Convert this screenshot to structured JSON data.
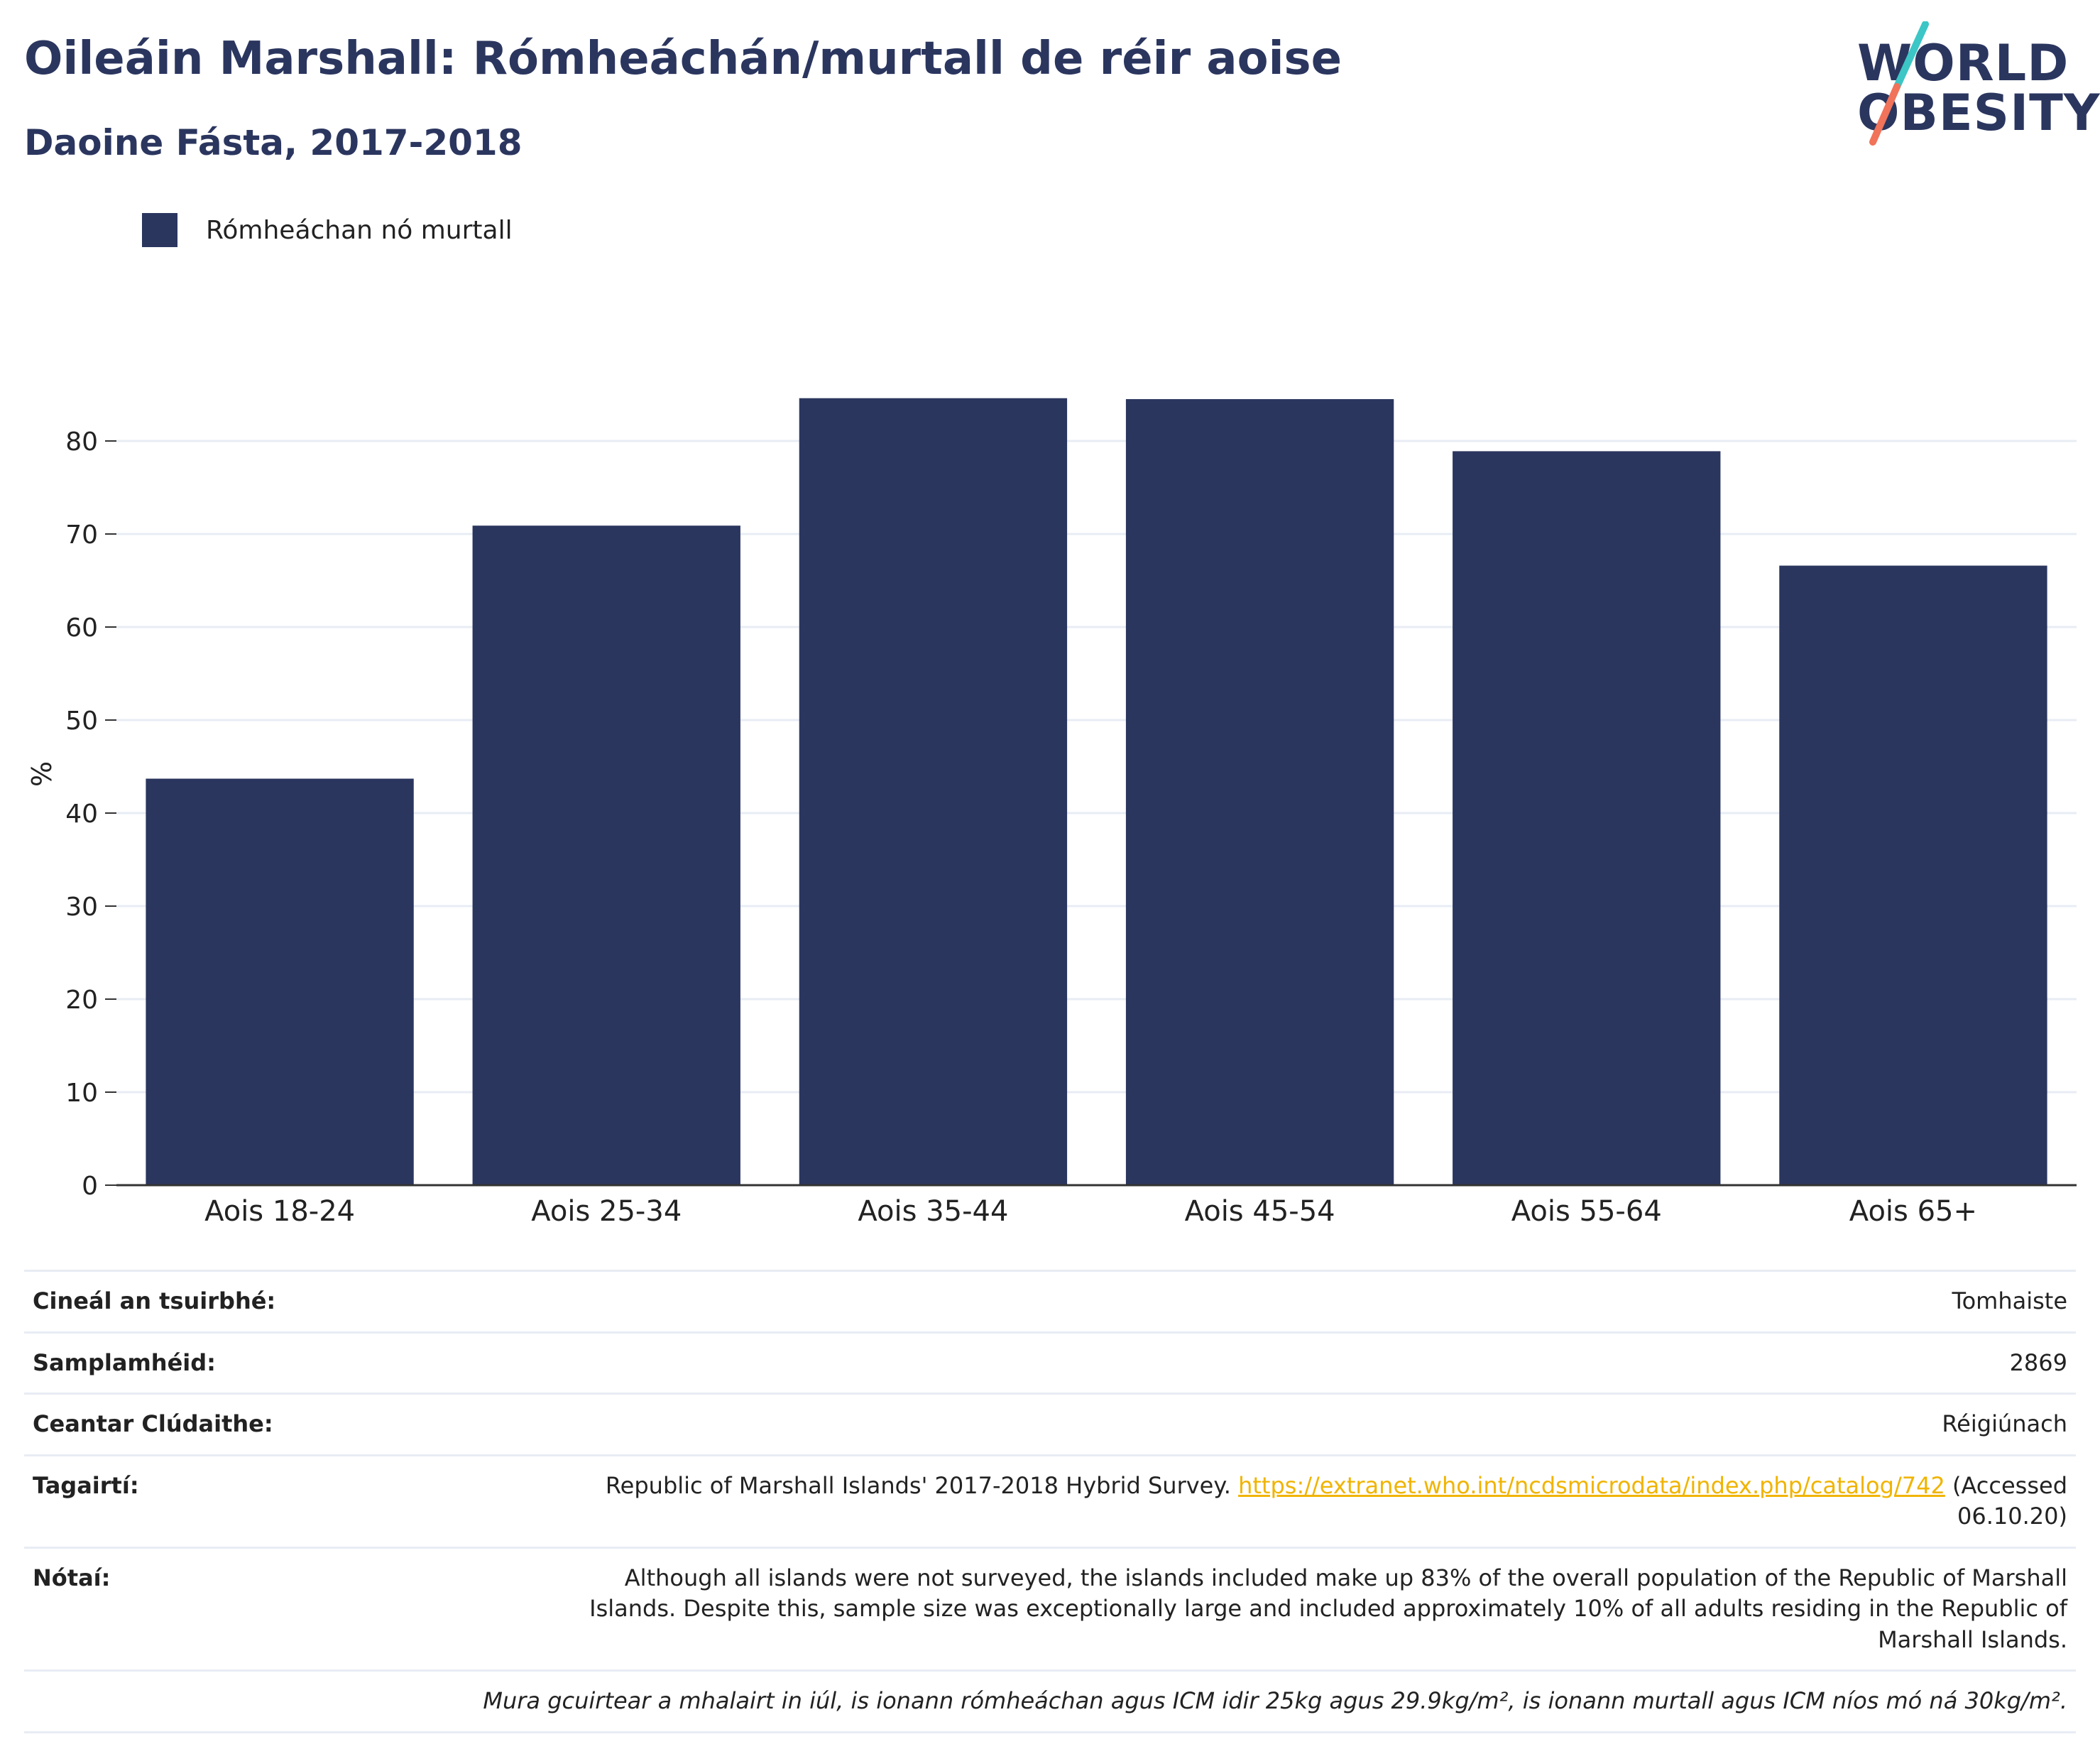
{
  "title": "Oileáin Marshall: Rómheáchán/murtall de réir aoise",
  "subtitle": "Daoine Fásta, 2017-2018",
  "logo": {
    "line1": "WORLD",
    "line2": "OBESITY",
    "slash_color_top": "#3cc6c6",
    "slash_color_bottom": "#f0735a"
  },
  "colors": {
    "bar": "#2b365f",
    "grid": "#e8ecf4",
    "axis": "#333333",
    "link": "#f0b400"
  },
  "chart_data": {
    "type": "bar",
    "categories": [
      "Aois 18-24",
      "Aois 25-34",
      "Aois 35-44",
      "Aois 45-54",
      "Aois 55-64",
      "Aois 65+"
    ],
    "series": [
      {
        "name": "Rómheáchan nó murtall",
        "values": [
          43.7,
          70.9,
          84.6,
          84.5,
          78.9,
          66.6
        ]
      }
    ],
    "xlabel": "",
    "ylabel": "%",
    "ylim": [
      0,
      90
    ],
    "yticks": [
      0,
      10,
      20,
      30,
      40,
      50,
      60,
      70,
      80
    ],
    "grid": true,
    "legend_position": "top-left"
  },
  "info": {
    "survey_type": {
      "label": "Cineál an tsuirbhé:",
      "value": "Tomhaiste"
    },
    "sample_size": {
      "label": "Samplamhéid:",
      "value": "2869"
    },
    "area": {
      "label": "Ceantar Clúdaithe:",
      "value": "Réigiúnach"
    },
    "references": {
      "label": "Tagairtí:",
      "prefix": "Republic of Marshall Islands' 2017-2018 Hybrid Survey. ",
      "link": "https://extranet.who.int/ncdsmicrodata/index.php/catalog/742",
      "suffix": " (Accessed 06.10.20)"
    },
    "notes": {
      "label": "Nótaí:",
      "value": "Although all islands were not surveyed, the islands included make up 83% of the overall population of the Republic of Marshall Islands. Despite this, sample size was exceptionally large and included approximately 10% of all adults residing in the Republic of Marshall Islands."
    },
    "footnote": "Mura gcuirtear a mhalairt in iúl, is ionann rómheáchan agus ICM idir 25kg agus 29.9kg/m², is ionann murtall agus ICM níos mó ná 30kg/m²."
  }
}
